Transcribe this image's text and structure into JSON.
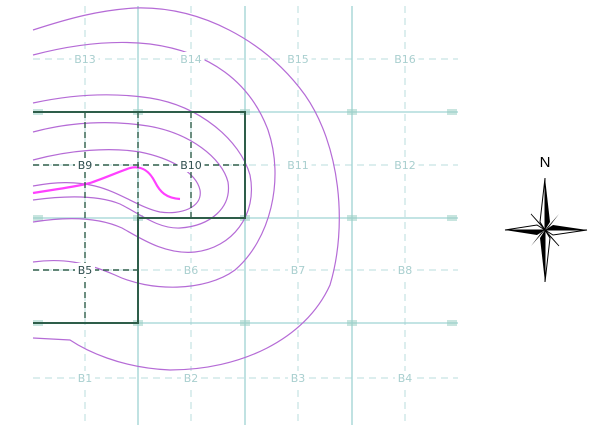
{
  "colors": {
    "grid_major": "#9fd3d3",
    "grid_minor": "#b8dede",
    "label_faint": "#a9cfcf",
    "label_dark": "#2f4f4f",
    "boundary": "#2e5e4a",
    "contour": "#b56bd6",
    "contour_peak": "#ff40ff",
    "marker": "#9ad0c4"
  },
  "grid": {
    "cells": [
      {
        "id": "B1",
        "label": "B1",
        "row": 0,
        "col": 0,
        "emphasis": false
      },
      {
        "id": "B2",
        "label": "B2",
        "row": 0,
        "col": 1,
        "emphasis": false
      },
      {
        "id": "B3",
        "label": "B3",
        "row": 0,
        "col": 2,
        "emphasis": false
      },
      {
        "id": "B4",
        "label": "B4",
        "row": 0,
        "col": 3,
        "emphasis": false
      },
      {
        "id": "B5",
        "label": "B5",
        "row": 1,
        "col": 0,
        "emphasis": true
      },
      {
        "id": "B6",
        "label": "B6",
        "row": 1,
        "col": 1,
        "emphasis": false
      },
      {
        "id": "B7",
        "label": "B7",
        "row": 1,
        "col": 2,
        "emphasis": false
      },
      {
        "id": "B8",
        "label": "B8",
        "row": 1,
        "col": 3,
        "emphasis": false
      },
      {
        "id": "B9",
        "label": "B9",
        "row": 2,
        "col": 0,
        "emphasis": true
      },
      {
        "id": "B10",
        "label": "B10",
        "row": 2,
        "col": 1,
        "emphasis": true
      },
      {
        "id": "B11",
        "label": "B11",
        "row": 2,
        "col": 2,
        "emphasis": false
      },
      {
        "id": "B12",
        "label": "B12",
        "row": 2,
        "col": 3,
        "emphasis": false
      },
      {
        "id": "B13",
        "label": "B13",
        "row": 3,
        "col": 0,
        "emphasis": false
      },
      {
        "id": "B14",
        "label": "B14",
        "row": 3,
        "col": 1,
        "emphasis": false
      },
      {
        "id": "B15",
        "label": "B15",
        "row": 3,
        "col": 2,
        "emphasis": false
      },
      {
        "id": "B16",
        "label": "B16",
        "row": 3,
        "col": 3,
        "emphasis": false
      }
    ]
  },
  "compass": {
    "north_label": "N"
  }
}
